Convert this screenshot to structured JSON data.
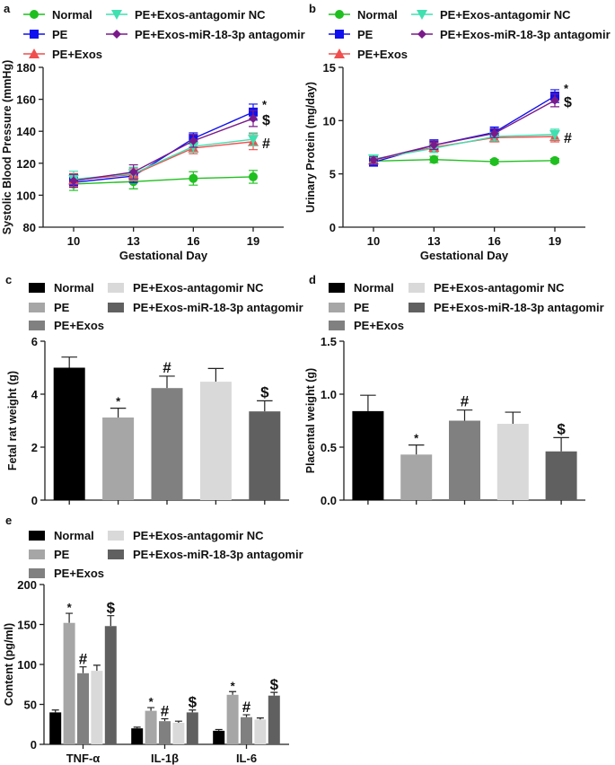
{
  "chart_data": [
    {
      "panel": "a",
      "type": "line",
      "xlabel": "Gestational Day",
      "ylabel": "Systolic Blood Pressure (mmHg)",
      "x": [
        10,
        13,
        16,
        19
      ],
      "ylim": [
        80,
        180
      ],
      "yticks": [
        80,
        100,
        120,
        140,
        160,
        180
      ],
      "series": [
        {
          "name": "Normal",
          "color": "#1fbf1f",
          "marker": "circle",
          "values": [
            107,
            108.5,
            110.5,
            111.5
          ],
          "err": [
            4,
            4.5,
            4.2,
            4
          ]
        },
        {
          "name": "PE",
          "color": "#1010ee",
          "marker": "square",
          "values": [
            108,
            112,
            135.5,
            152
          ],
          "err": [
            3,
            4,
            3.5,
            5
          ]
        },
        {
          "name": "PE+Exos",
          "color": "#ef4f4f",
          "marker": "triangle-up",
          "values": [
            109.5,
            113,
            129.5,
            133.5
          ],
          "err": [
            4,
            4,
            3.5,
            5
          ]
        },
        {
          "name": "PE+Exos-antagomir NC",
          "color": "#40e0b0",
          "marker": "triangle-down",
          "values": [
            110,
            113.5,
            130.5,
            135
          ],
          "err": [
            5,
            4,
            3.5,
            4
          ]
        },
        {
          "name": "PE+Exos-miR-18-3p antagomir",
          "color": "#7a1a8a",
          "marker": "diamond",
          "values": [
            109,
            114.5,
            134,
            148
          ],
          "err": [
            4,
            4.5,
            4,
            5
          ]
        }
      ],
      "annotations": [
        {
          "text": "*",
          "series": 1
        },
        {
          "text": "$",
          "series": 4
        },
        {
          "text": "#",
          "series": 2
        }
      ]
    },
    {
      "panel": "b",
      "type": "line",
      "xlabel": "Gestational Day",
      "ylabel": "Urinary Protein (mg/day)",
      "x": [
        10,
        13,
        16,
        19
      ],
      "ylim": [
        0,
        15
      ],
      "yticks": [
        0,
        5,
        10,
        15
      ],
      "series": [
        {
          "name": "Normal",
          "color": "#1fbf1f",
          "marker": "circle",
          "values": [
            6.2,
            6.35,
            6.15,
            6.25
          ],
          "err": [
            0.3,
            0.3,
            0.2,
            0.2
          ]
        },
        {
          "name": "PE",
          "color": "#1010ee",
          "marker": "square",
          "values": [
            6.1,
            7.7,
            8.9,
            12.3
          ],
          "err": [
            0.3,
            0.5,
            0.5,
            0.6
          ]
        },
        {
          "name": "PE+Exos",
          "color": "#ef4f4f",
          "marker": "triangle-up",
          "values": [
            6.3,
            7.5,
            8.4,
            8.5
          ],
          "err": [
            0.3,
            0.4,
            0.4,
            0.5
          ]
        },
        {
          "name": "PE+Exos-antagomir NC",
          "color": "#40e0b0",
          "marker": "triangle-down",
          "values": [
            6.4,
            7.4,
            8.5,
            8.7
          ],
          "err": [
            0.3,
            0.4,
            0.4,
            0.5
          ]
        },
        {
          "name": "PE+Exos-miR-18-3p antagomir",
          "color": "#7a1a8a",
          "marker": "diamond",
          "values": [
            6.3,
            7.7,
            8.8,
            11.9
          ],
          "err": [
            0.3,
            0.4,
            0.4,
            0.6
          ]
        }
      ],
      "annotations": [
        {
          "text": "*",
          "series": 1
        },
        {
          "text": "$",
          "series": 4
        },
        {
          "text": "#",
          "series": 2
        }
      ]
    },
    {
      "panel": "c",
      "type": "bar",
      "xlabel": "",
      "ylabel": "Fetal rat weight (g)",
      "ylim": [
        0,
        6
      ],
      "yticks": [
        0,
        2,
        4,
        6
      ],
      "categories": [
        "Normal",
        "PE",
        "PE+Exos",
        "PE+Exos-antagomir NC",
        "PE+Exos-miR-18-3p antagomir"
      ],
      "colors": [
        "#000000",
        "#a6a6a6",
        "#808080",
        "#d9d9d9",
        "#606060"
      ],
      "values": [
        5.0,
        3.12,
        4.23,
        4.47,
        3.35
      ],
      "err": [
        0.4,
        0.35,
        0.45,
        0.5,
        0.4
      ],
      "annotations": [
        "",
        "*",
        "#",
        "",
        "$"
      ]
    },
    {
      "panel": "d",
      "type": "bar",
      "xlabel": "",
      "ylabel": "Placental weight (g)",
      "ylim": [
        0,
        1.5
      ],
      "yticks": [
        "0.0",
        "0.5",
        "1.0",
        "1.5"
      ],
      "categories": [
        "Normal",
        "PE",
        "PE+Exos",
        "PE+Exos-antagomir NC",
        "PE+Exos-miR-18-3p antagomir"
      ],
      "colors": [
        "#000000",
        "#a6a6a6",
        "#808080",
        "#d9d9d9",
        "#606060"
      ],
      "values": [
        0.84,
        0.43,
        0.75,
        0.72,
        0.46
      ],
      "err": [
        0.15,
        0.09,
        0.1,
        0.11,
        0.13
      ],
      "annotations": [
        "",
        "*",
        "#",
        "",
        "$"
      ]
    },
    {
      "panel": "e",
      "type": "bar",
      "xlabel": "",
      "ylabel": "Content (pg/ml)",
      "ylim": [
        0,
        200
      ],
      "yticks": [
        0,
        50,
        100,
        150,
        200
      ],
      "categories": [
        "TNF-α",
        "IL-1β",
        "IL-6"
      ],
      "series": [
        {
          "name": "Normal",
          "color": "#000000",
          "values": [
            40,
            20,
            17
          ],
          "err": [
            3,
            1.5,
            1.5
          ],
          "annotations": [
            "",
            "",
            ""
          ]
        },
        {
          "name": "PE",
          "color": "#a6a6a6",
          "values": [
            152,
            42,
            62
          ],
          "err": [
            12,
            4,
            4
          ],
          "annotations": [
            "*",
            "*",
            "*"
          ]
        },
        {
          "name": "PE+Exos",
          "color": "#808080",
          "values": [
            89,
            29,
            34
          ],
          "err": [
            8,
            3,
            3
          ],
          "annotations": [
            "#",
            "#",
            "#"
          ]
        },
        {
          "name": "PE+Exos-antagomir NC",
          "color": "#d9d9d9",
          "values": [
            92,
            27,
            31
          ],
          "err": [
            7,
            2,
            2
          ],
          "annotations": [
            "",
            "",
            ""
          ]
        },
        {
          "name": "PE+Exos-miR-18-3p antagomir",
          "color": "#606060",
          "values": [
            148,
            40,
            61
          ],
          "err": [
            13,
            3,
            4
          ],
          "annotations": [
            "$",
            "$",
            "$"
          ]
        }
      ]
    }
  ]
}
